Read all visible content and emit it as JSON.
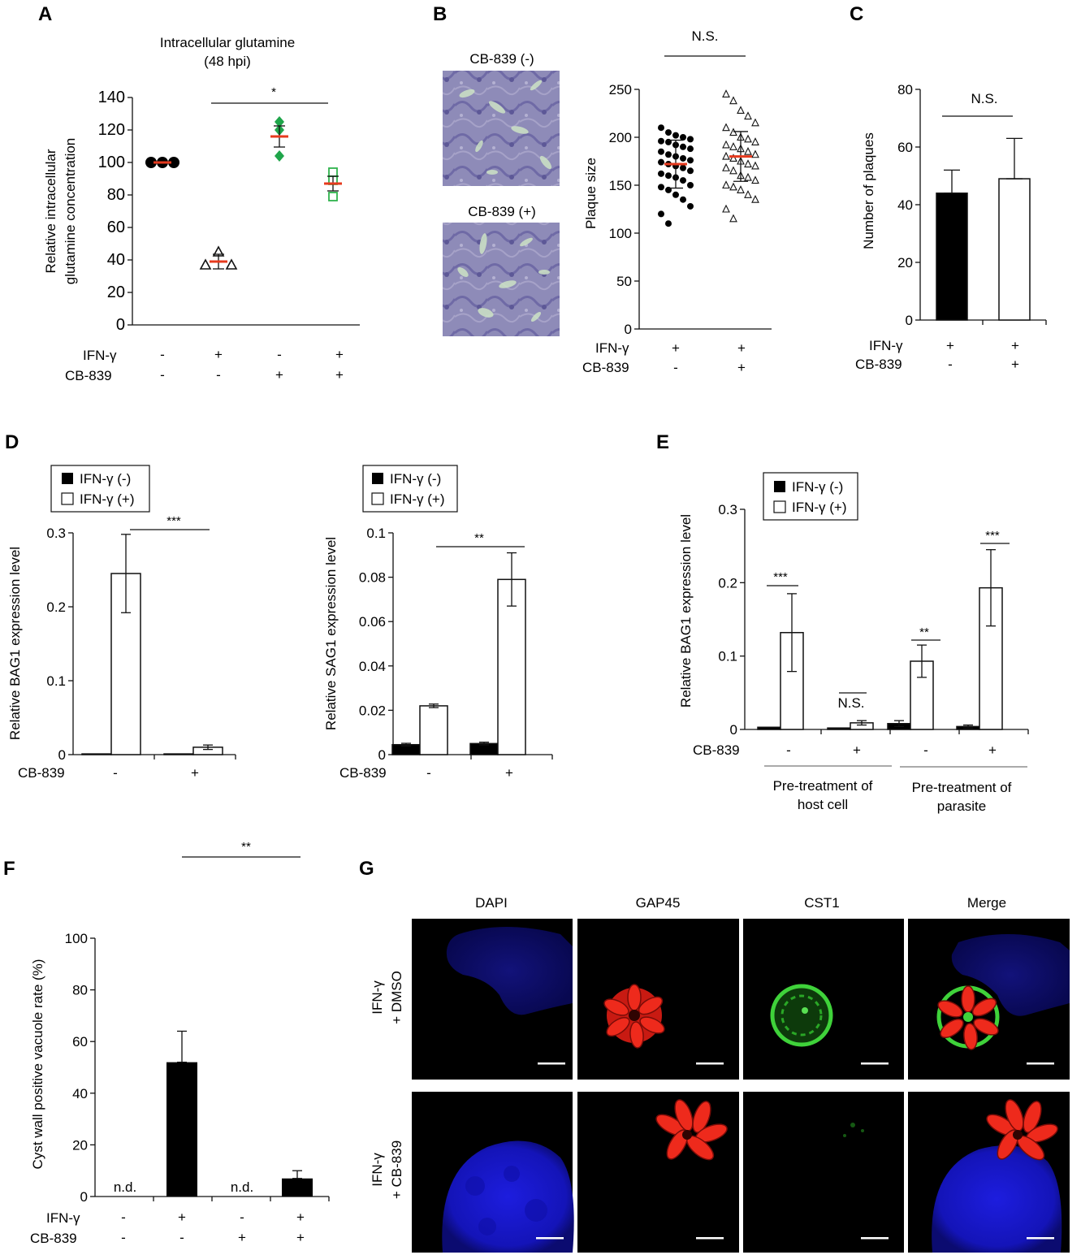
{
  "colors": {
    "red_mean": "#e63a1e",
    "green_filled": "#1fa54a",
    "green_open": "#2fb34d",
    "nucleus_blue": "#1a1ae0",
    "gap45_red": "#e0231a",
    "cst1_green": "#3fd23a"
  },
  "panels": {
    "A": {
      "letter": "A",
      "title_line1": "Intracellular glutamine",
      "title_line2": "(48 hpi)",
      "ylabel_line1": "Relative intracellular",
      "ylabel_line2": "glutamine concentration",
      "ifn_label": "IFN-γ",
      "cb_label": "CB-839",
      "ifn_signs": [
        "-",
        "+",
        "-",
        "+"
      ],
      "cb_signs": [
        "-",
        "-",
        "+",
        "+"
      ],
      "sig": "*"
    },
    "B": {
      "letter": "B",
      "img_label_top": "CB-839 (-)",
      "img_label_bottom": "CB-839 (+)",
      "ylabel": "Plaque size",
      "ifn_label": "IFN-γ",
      "cb_label": "CB-839",
      "ifn_signs": [
        "+",
        "+"
      ],
      "cb_signs": [
        "-",
        "+"
      ],
      "sig": "N.S."
    },
    "C": {
      "letter": "C",
      "ylabel": "Number of plaques",
      "ifn_label": "IFN-γ",
      "cb_label": "CB-839",
      "ifn_signs": [
        "+",
        "+"
      ],
      "cb_signs": [
        "-",
        "+"
      ],
      "sig": "N.S."
    },
    "D": {
      "letter": "D",
      "legend_off": "IFN-γ (-)",
      "legend_on": "IFN-γ (+)",
      "left_ylabel": "Relative BAG1 expression level",
      "right_ylabel": "Relative SAG1 expression level",
      "cb_label": "CB-839",
      "cb_signs": [
        "-",
        "+"
      ],
      "left_sig": "***",
      "right_sig": "**"
    },
    "E": {
      "letter": "E",
      "legend_off": "IFN-γ (-)",
      "legend_on": "IFN-γ (+)",
      "ylabel": "Relative BAG1 expression level",
      "cb_label": "CB-839",
      "cb_signs": [
        "-",
        "+",
        "-",
        "+"
      ],
      "sigs": [
        "***",
        "N.S.",
        "**",
        "***"
      ],
      "group1_line1": "Pre-treatment of",
      "group1_line2": "host cell",
      "group2_line1": "Pre-treatment of",
      "group2_line2": "parasite"
    },
    "F": {
      "letter": "F",
      "ylabel": "Cyst wall positive vacuole rate (%)",
      "ifn_label": "IFN-γ",
      "cb_label": "CB-839",
      "ifn_signs": [
        "-",
        "+",
        "-",
        "+"
      ],
      "cb_signs": [
        "-",
        "-",
        "+",
        "+"
      ],
      "nd1": "n.d.",
      "nd2": "n.d.",
      "sig": "**"
    },
    "G": {
      "letter": "G",
      "channels": [
        "DAPI",
        "GAP45",
        "CST1",
        "Merge"
      ],
      "row1_line1": "IFN-γ",
      "row1_line2": "+ DMSO",
      "row2_line1": "IFN-γ",
      "row2_line2": "+ CB-839"
    }
  },
  "chart_data": [
    {
      "panel": "A",
      "type": "scatter",
      "title": "Intracellular glutamine (48 hpi)",
      "ylabel": "Relative intracellular glutamine concentration",
      "ylim": [
        0,
        140
      ],
      "yticks": [
        0,
        20,
        40,
        60,
        80,
        100,
        120,
        140
      ],
      "groups": [
        {
          "ifn": "-",
          "cb": "-",
          "points": [
            100,
            100,
            100
          ],
          "mean": 100,
          "err": 0,
          "marker": "filled-circle"
        },
        {
          "ifn": "+",
          "cb": "-",
          "points": [
            37,
            45,
            37
          ],
          "mean": 39,
          "err": 4.5,
          "marker": "open-triangle"
        },
        {
          "ifn": "-",
          "cb": "+",
          "points": [
            125,
            120,
            104
          ],
          "mean": 116,
          "err": 6.5,
          "marker": "filled-diamond"
        },
        {
          "ifn": "+",
          "cb": "+",
          "points": [
            94,
            89,
            79
          ],
          "mean": 87,
          "err": 4.5,
          "marker": "open-square"
        }
      ]
    },
    {
      "panel": "B",
      "type": "scatter",
      "ylabel": "Plaque size",
      "ylim": [
        0,
        250
      ],
      "yticks": [
        0,
        50,
        100,
        150,
        200,
        250
      ],
      "groups": [
        {
          "ifn": "+",
          "cb": "-",
          "mean": 172,
          "sd": 25,
          "marker": "filled-circle",
          "points": [
            210,
            205,
            202,
            200,
            198,
            196,
            195,
            192,
            190,
            188,
            185,
            182,
            180,
            178,
            176,
            174,
            172,
            170,
            168,
            165,
            162,
            160,
            158,
            155,
            150,
            148,
            145,
            140,
            135,
            128,
            120,
            110
          ]
        },
        {
          "ifn": "+",
          "cb": "+",
          "mean": 180,
          "sd": 26,
          "marker": "open-triangle",
          "points": [
            245,
            238,
            228,
            222,
            215,
            210,
            205,
            200,
            198,
            195,
            192,
            190,
            188,
            185,
            182,
            180,
            178,
            175,
            172,
            170,
            168,
            165,
            160,
            158,
            155,
            150,
            148,
            145,
            140,
            135,
            125,
            115
          ]
        }
      ]
    },
    {
      "panel": "C",
      "type": "bar",
      "ylabel": "Number of plaques",
      "ylim": [
        0,
        80
      ],
      "yticks": [
        0,
        20,
        40,
        60,
        80
      ],
      "groups": [
        {
          "ifn": "+",
          "cb": "-",
          "value": 44,
          "err": 8,
          "fill": "black"
        },
        {
          "ifn": "+",
          "cb": "+",
          "value": 49,
          "err": 14,
          "fill": "white"
        }
      ]
    },
    {
      "panel": "D-left",
      "type": "bar",
      "ylabel": "Relative BAG1 expression level",
      "ylim": [
        0,
        0.3
      ],
      "yticks": [
        0,
        0.1,
        0.2,
        0.3
      ],
      "categories": [
        "-",
        "+"
      ],
      "series": [
        {
          "name": "IFN-γ (-)",
          "values": [
            0.001,
            0.001
          ],
          "errors": [
            0,
            0
          ]
        },
        {
          "name": "IFN-γ (+)",
          "values": [
            0.245,
            0.01
          ],
          "errors": [
            0.053,
            0.003
          ]
        }
      ]
    },
    {
      "panel": "D-right",
      "type": "bar",
      "ylabel": "Relative SAG1 expression level",
      "ylim": [
        0,
        0.1
      ],
      "yticks": [
        0,
        0.02,
        0.04,
        0.06,
        0.08,
        0.1
      ],
      "categories": [
        "-",
        "+"
      ],
      "series": [
        {
          "name": "IFN-γ (-)",
          "values": [
            0.0045,
            0.005
          ],
          "errors": [
            0.0006,
            0.0006
          ]
        },
        {
          "name": "IFN-γ (+)",
          "values": [
            0.022,
            0.079
          ],
          "errors": [
            0.0008,
            0.012
          ]
        }
      ]
    },
    {
      "panel": "E",
      "type": "bar",
      "ylabel": "Relative BAG1 expression level",
      "ylim": [
        0,
        0.3
      ],
      "yticks": [
        0,
        0.1,
        0.2,
        0.3
      ],
      "categories": [
        "-",
        "+",
        "-",
        "+"
      ],
      "series": [
        {
          "name": "IFN-γ (-)",
          "values": [
            0.003,
            0.002,
            0.008,
            0.004
          ],
          "errors": [
            0,
            0,
            0.004,
            0.002
          ]
        },
        {
          "name": "IFN-γ (+)",
          "values": [
            0.132,
            0.009,
            0.093,
            0.193
          ],
          "errors": [
            0.053,
            0.003,
            0.022,
            0.052
          ]
        }
      ]
    },
    {
      "panel": "F",
      "type": "bar",
      "ylabel": "Cyst wall positive vacuole rate (%)",
      "ylim": [
        0,
        100
      ],
      "yticks": [
        0,
        20,
        40,
        60,
        80,
        100
      ],
      "groups": [
        {
          "ifn": "-",
          "cb": "-",
          "value": 0,
          "err": 0,
          "label": "n.d."
        },
        {
          "ifn": "+",
          "cb": "-",
          "value": 52,
          "err": 12
        },
        {
          "ifn": "-",
          "cb": "+",
          "value": 0,
          "err": 0,
          "label": "n.d."
        },
        {
          "ifn": "+",
          "cb": "+",
          "value": 7,
          "err": 3
        }
      ]
    }
  ]
}
